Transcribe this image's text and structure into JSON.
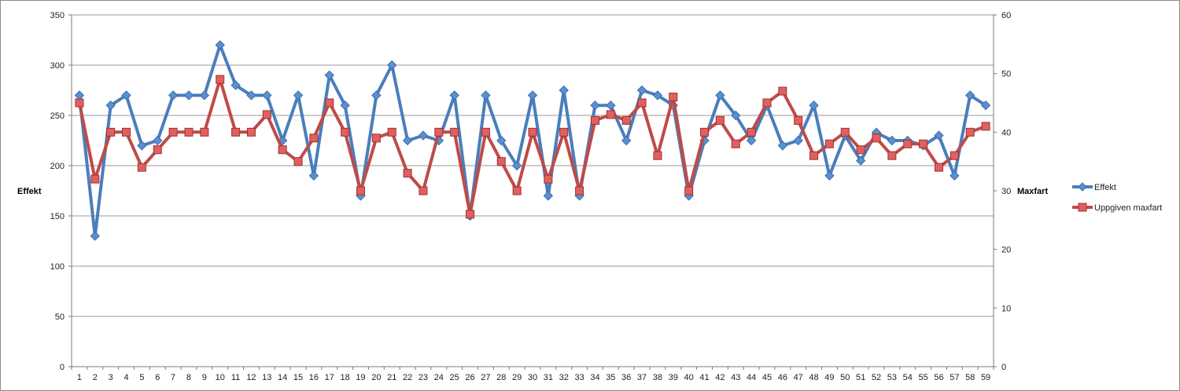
{
  "chart_data": {
    "type": "line",
    "title": "",
    "xlabel": "",
    "ylabel_left": "Effekt",
    "ylabel_right": "Maxfart",
    "ylim_left": [
      0,
      350
    ],
    "yticks_left": [
      0,
      50,
      100,
      150,
      200,
      250,
      300,
      350
    ],
    "ylim_right": [
      0,
      60
    ],
    "yticks_right": [
      0,
      10,
      20,
      30,
      40,
      50,
      60
    ],
    "grid": true,
    "legend_position": "right",
    "categories": [
      "1",
      "2",
      "3",
      "4",
      "5",
      "6",
      "7",
      "8",
      "9",
      "10",
      "11",
      "12",
      "13",
      "14",
      "15",
      "16",
      "17",
      "18",
      "19",
      "20",
      "21",
      "22",
      "23",
      "24",
      "25",
      "26",
      "27",
      "28",
      "29",
      "30",
      "31",
      "32",
      "33",
      "34",
      "35",
      "36",
      "37",
      "38",
      "39",
      "40",
      "41",
      "42",
      "43",
      "44",
      "45",
      "46",
      "47",
      "48",
      "49",
      "50",
      "51",
      "52",
      "53",
      "54",
      "55",
      "56",
      "57",
      "58",
      "59"
    ],
    "series": [
      {
        "name": "Effekt",
        "axis": "left",
        "color": "#4a7ebb",
        "marker": "diamond",
        "values": [
          270,
          130,
          260,
          270,
          220,
          225,
          270,
          270,
          270,
          320,
          280,
          270,
          270,
          225,
          270,
          190,
          290,
          260,
          170,
          270,
          300,
          225,
          230,
          225,
          270,
          150,
          270,
          225,
          200,
          270,
          170,
          275,
          170,
          260,
          260,
          225,
          275,
          270,
          260,
          170,
          225,
          270,
          250,
          225,
          260,
          220,
          225,
          260,
          190,
          230,
          205,
          233,
          225,
          225,
          220,
          230,
          190,
          270,
          260
        ]
      },
      {
        "name": "Uppgiven maxfart",
        "axis": "right",
        "color": "#be4b48",
        "marker": "square",
        "values": [
          45,
          32,
          40,
          40,
          34,
          37,
          40,
          40,
          40,
          49,
          40,
          40,
          43,
          37,
          35,
          39,
          45,
          40,
          30,
          39,
          40,
          33,
          30,
          40,
          40,
          26,
          40,
          35,
          30,
          40,
          32,
          40,
          30,
          42,
          43,
          42,
          45,
          36,
          46,
          30,
          40,
          42,
          38,
          40,
          45,
          47,
          42,
          36,
          38,
          40,
          37,
          39,
          36,
          38,
          38,
          34,
          36,
          40,
          41
        ]
      }
    ]
  }
}
